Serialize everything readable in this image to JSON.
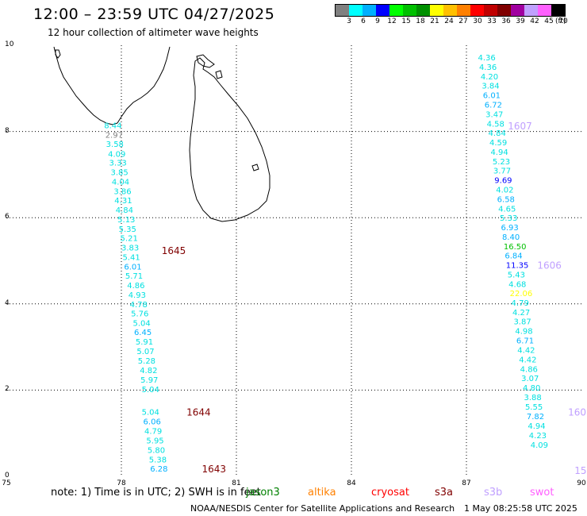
{
  "header": {
    "title": "12:00 – 23:59 UTC 04/27/2025",
    "subtitle": "12 hour collection of altimeter wave heights"
  },
  "color_scale": {
    "colors": [
      "#808080",
      "#00ffff",
      "#00b0ff",
      "#0000ff",
      "#00ff00",
      "#00c000",
      "#009000",
      "#ffff00",
      "#ffc000",
      "#ff8000",
      "#ff0000",
      "#c00000",
      "#800000",
      "#a000a0",
      "#c0a0ff",
      "#ff60ff",
      "#000000"
    ],
    "labels": [
      "3",
      "6",
      "9",
      "12",
      "15",
      "18",
      "21",
      "24",
      "27",
      "30",
      "33",
      "36",
      "39",
      "42",
      "45",
      "70"
    ],
    "unit": "(ft)"
  },
  "axes": {
    "y_ticks": [
      "10",
      "8",
      "6",
      "4",
      "2",
      "0"
    ],
    "x_ticks": [
      "75",
      "78",
      "81",
      "84",
      "87",
      "90"
    ]
  },
  "tracks": [
    {
      "pass_id": "1645",
      "pass_color": "#800000",
      "pass_lon": 79.05,
      "pass_lat": 5.25,
      "points": [
        {
          "lon": 77.55,
          "lat": 8.15,
          "value": "8.44",
          "color": "#00e0e0"
        },
        {
          "lon": 77.58,
          "lat": 7.93,
          "value": "2.97",
          "color": "#808080"
        },
        {
          "lon": 77.6,
          "lat": 7.72,
          "value": "3.58",
          "color": "#00e0e0"
        },
        {
          "lon": 77.65,
          "lat": 7.49,
          "value": "4.09",
          "color": "#00e0e0"
        },
        {
          "lon": 77.68,
          "lat": 7.28,
          "value": "3.33",
          "color": "#00e0e0"
        },
        {
          "lon": 77.72,
          "lat": 7.06,
          "value": "3.85",
          "color": "#00e0e0"
        },
        {
          "lon": 77.75,
          "lat": 6.84,
          "value": "4.04",
          "color": "#00e0e0"
        },
        {
          "lon": 77.8,
          "lat": 6.62,
          "value": "3.86",
          "color": "#00e0e0"
        },
        {
          "lon": 77.82,
          "lat": 6.41,
          "value": "4.31",
          "color": "#00e0e0"
        },
        {
          "lon": 77.85,
          "lat": 6.19,
          "value": "4.84",
          "color": "#00e0e0"
        },
        {
          "lon": 77.9,
          "lat": 5.97,
          "value": "5.13",
          "color": "#00e0e0"
        },
        {
          "lon": 77.93,
          "lat": 5.75,
          "value": "5.35",
          "color": "#00e0e0"
        },
        {
          "lon": 77.97,
          "lat": 5.53,
          "value": "5.21",
          "color": "#00e0e0"
        },
        {
          "lon": 78.0,
          "lat": 5.31,
          "value": "3.83",
          "color": "#00e0e0"
        },
        {
          "lon": 78.03,
          "lat": 5.09,
          "value": "5.41",
          "color": "#00e0e0"
        },
        {
          "lon": 78.07,
          "lat": 4.87,
          "value": "6.01",
          "color": "#00b0ff"
        },
        {
          "lon": 78.1,
          "lat": 4.66,
          "value": "5.71",
          "color": "#00e0e0"
        },
        {
          "lon": 78.15,
          "lat": 4.44,
          "value": "4.86",
          "color": "#00e0e0"
        },
        {
          "lon": 78.18,
          "lat": 4.22,
          "value": "4.93",
          "color": "#00e0e0"
        },
        {
          "lon": 78.22,
          "lat": 4.0,
          "value": "4.78",
          "color": "#00e0e0"
        },
        {
          "lon": 78.25,
          "lat": 3.78,
          "value": "5.76",
          "color": "#00e0e0"
        },
        {
          "lon": 78.3,
          "lat": 3.56,
          "value": "5.04",
          "color": "#00e0e0"
        },
        {
          "lon": 78.33,
          "lat": 3.35,
          "value": "6.45",
          "color": "#00b0ff"
        },
        {
          "lon": 78.37,
          "lat": 3.13,
          "value": "5.91",
          "color": "#00e0e0"
        },
        {
          "lon": 78.4,
          "lat": 2.91,
          "value": "5.07",
          "color": "#00e0e0"
        },
        {
          "lon": 78.43,
          "lat": 2.69,
          "value": "5.28",
          "color": "#00e0e0"
        },
        {
          "lon": 78.48,
          "lat": 2.47,
          "value": "4.82",
          "color": "#00e0e0"
        },
        {
          "lon": 78.5,
          "lat": 2.25,
          "value": "5.97",
          "color": "#00e0e0"
        },
        {
          "lon": 78.53,
          "lat": 2.03,
          "value": "5.04",
          "color": "#00e0e0"
        }
      ]
    },
    {
      "pass_id": "1644",
      "pass_color": "#800000",
      "pass_lon": 79.7,
      "pass_lat": 1.5,
      "points": [
        {
          "lon": 78.53,
          "lat": 1.5,
          "value": "5.04",
          "color": "#00e0e0"
        },
        {
          "lon": 78.57,
          "lat": 1.28,
          "value": "6.06",
          "color": "#00b0ff"
        },
        {
          "lon": 78.6,
          "lat": 1.06,
          "value": "4.79",
          "color": "#00e0e0"
        },
        {
          "lon": 78.65,
          "lat": 0.84,
          "value": "5.95",
          "color": "#00e0e0"
        },
        {
          "lon": 78.68,
          "lat": 0.62,
          "value": "5.80",
          "color": "#00e0e0"
        },
        {
          "lon": 78.72,
          "lat": 0.4,
          "value": "5.38",
          "color": "#00e0e0"
        },
        {
          "lon": 78.75,
          "lat": 0.18,
          "value": "6.28",
          "color": "#00b0ff"
        }
      ]
    },
    {
      "pass_id": "1643",
      "pass_color": "#800000",
      "pass_lon": 80.1,
      "pass_lat": 0.18,
      "points": []
    },
    {
      "pass_id": "1607",
      "pass_color": "#c0a0ff",
      "pass_lon": 88.08,
      "pass_lat": 8.14,
      "points": [
        {
          "lon": 87.3,
          "lat": 9.72,
          "value": "4.36",
          "color": "#00e0e0"
        },
        {
          "lon": 87.33,
          "lat": 9.5,
          "value": "4.36",
          "color": "#00e0e0"
        },
        {
          "lon": 87.37,
          "lat": 9.28,
          "value": "4.20",
          "color": "#00e0e0"
        },
        {
          "lon": 87.4,
          "lat": 9.07,
          "value": "3.84",
          "color": "#00e0e0"
        },
        {
          "lon": 87.43,
          "lat": 8.85,
          "value": "6.01",
          "color": "#00b0ff"
        },
        {
          "lon": 87.47,
          "lat": 8.63,
          "value": "6.72",
          "color": "#00b0ff"
        },
        {
          "lon": 87.5,
          "lat": 8.41,
          "value": "3.47",
          "color": "#00e0e0"
        },
        {
          "lon": 87.53,
          "lat": 8.19,
          "value": "4.58",
          "color": "#00e0e0"
        },
        {
          "lon": 87.57,
          "lat": 7.97,
          "value": "4.84",
          "color": "#00e0e0"
        },
        {
          "lon": 87.6,
          "lat": 7.75,
          "value": "4.59",
          "color": "#00e0e0"
        },
        {
          "lon": 87.63,
          "lat": 7.53,
          "value": "4.94",
          "color": "#00e0e0"
        },
        {
          "lon": 87.68,
          "lat": 7.31,
          "value": "5.23",
          "color": "#00e0e0"
        },
        {
          "lon": 87.7,
          "lat": 7.1,
          "value": "3.77",
          "color": "#00e0e0"
        },
        {
          "lon": 87.73,
          "lat": 6.88,
          "value": "9.69",
          "color": "#0000ff"
        },
        {
          "lon": 87.77,
          "lat": 6.66,
          "value": "4.02",
          "color": "#00e0e0"
        },
        {
          "lon": 87.8,
          "lat": 6.44,
          "value": "6.58",
          "color": "#00b0ff"
        },
        {
          "lon": 87.83,
          "lat": 6.22,
          "value": "4.65",
          "color": "#00e0e0"
        },
        {
          "lon": 87.87,
          "lat": 6.0,
          "value": "5.33",
          "color": "#00e0e0"
        },
        {
          "lon": 87.9,
          "lat": 5.78,
          "value": "6.93",
          "color": "#00b0ff"
        },
        {
          "lon": 87.93,
          "lat": 5.56,
          "value": "8.40",
          "color": "#00b0ff"
        },
        {
          "lon": 87.97,
          "lat": 5.34,
          "value": "16.50",
          "color": "#00c000"
        },
        {
          "lon": 88.0,
          "lat": 5.13,
          "value": "6.84",
          "color": "#00b0ff"
        },
        {
          "lon": 88.03,
          "lat": 4.91,
          "value": "11.35",
          "color": "#0000ff"
        }
      ]
    },
    {
      "pass_id": "1606",
      "pass_color": "#c0a0ff",
      "pass_lon": 88.85,
      "pass_lat": 4.91,
      "points": [
        {
          "lon": 88.07,
          "lat": 4.69,
          "value": "5.43",
          "color": "#00e0e0"
        },
        {
          "lon": 88.1,
          "lat": 4.47,
          "value": "4.68",
          "color": "#00e0e0"
        },
        {
          "lon": 88.13,
          "lat": 4.25,
          "value": "22.06",
          "color": "#ffff00"
        },
        {
          "lon": 88.17,
          "lat": 4.03,
          "value": "4.79",
          "color": "#00e0e0"
        },
        {
          "lon": 88.2,
          "lat": 3.81,
          "value": "4.27",
          "color": "#00e0e0"
        },
        {
          "lon": 88.23,
          "lat": 3.6,
          "value": "3.87",
          "color": "#00e0e0"
        },
        {
          "lon": 88.27,
          "lat": 3.38,
          "value": "4.98",
          "color": "#00e0e0"
        },
        {
          "lon": 88.3,
          "lat": 3.16,
          "value": "6.71",
          "color": "#00b0ff"
        },
        {
          "lon": 88.33,
          "lat": 2.94,
          "value": "4.42",
          "color": "#00e0e0"
        },
        {
          "lon": 88.37,
          "lat": 2.72,
          "value": "4.42",
          "color": "#00e0e0"
        },
        {
          "lon": 88.4,
          "lat": 2.5,
          "value": "4.86",
          "color": "#00e0e0"
        },
        {
          "lon": 88.43,
          "lat": 2.28,
          "value": "3.07",
          "color": "#00e0e0"
        },
        {
          "lon": 88.47,
          "lat": 2.06,
          "value": "4.80",
          "color": "#00e0e0"
        },
        {
          "lon": 88.5,
          "lat": 1.84,
          "value": "3.88",
          "color": "#00e0e0"
        },
        {
          "lon": 88.53,
          "lat": 1.62,
          "value": "5.55",
          "color": "#00e0e0"
        },
        {
          "lon": 88.57,
          "lat": 1.4,
          "value": "7.82",
          "color": "#00b0ff"
        },
        {
          "lon": 88.6,
          "lat": 1.18,
          "value": "4.94",
          "color": "#00e0e0"
        },
        {
          "lon": 88.63,
          "lat": 0.96,
          "value": "4.23",
          "color": "#00e0e0"
        },
        {
          "lon": 88.67,
          "lat": 0.74,
          "value": "4.09",
          "color": "#00e0e0"
        }
      ]
    },
    {
      "pass_id": "160",
      "pass_color": "#c0a0ff",
      "pass_lon": 89.65,
      "pass_lat": 1.5,
      "points": []
    },
    {
      "pass_id": "15",
      "pass_color": "#c0a0ff",
      "pass_lon": 89.82,
      "pass_lat": 0.15,
      "points": []
    }
  ],
  "footer": {
    "note": "note:  1) Time is in UTC;  2) SWH is in feet",
    "satellites": [
      {
        "name": "jason3",
        "color": "#008000"
      },
      {
        "name": "altika",
        "color": "#ff8000"
      },
      {
        "name": "cryosat",
        "color": "#ff0000"
      },
      {
        "name": "s3a",
        "color": "#800000"
      },
      {
        "name": "s3b",
        "color": "#c0a0ff"
      },
      {
        "name": "swot",
        "color": "#ff60ff"
      }
    ],
    "credit": "NOAA/NESDIS Center for Satellite Applications and Research",
    "timestamp": "1 May 08:25:58 UTC 2025"
  }
}
